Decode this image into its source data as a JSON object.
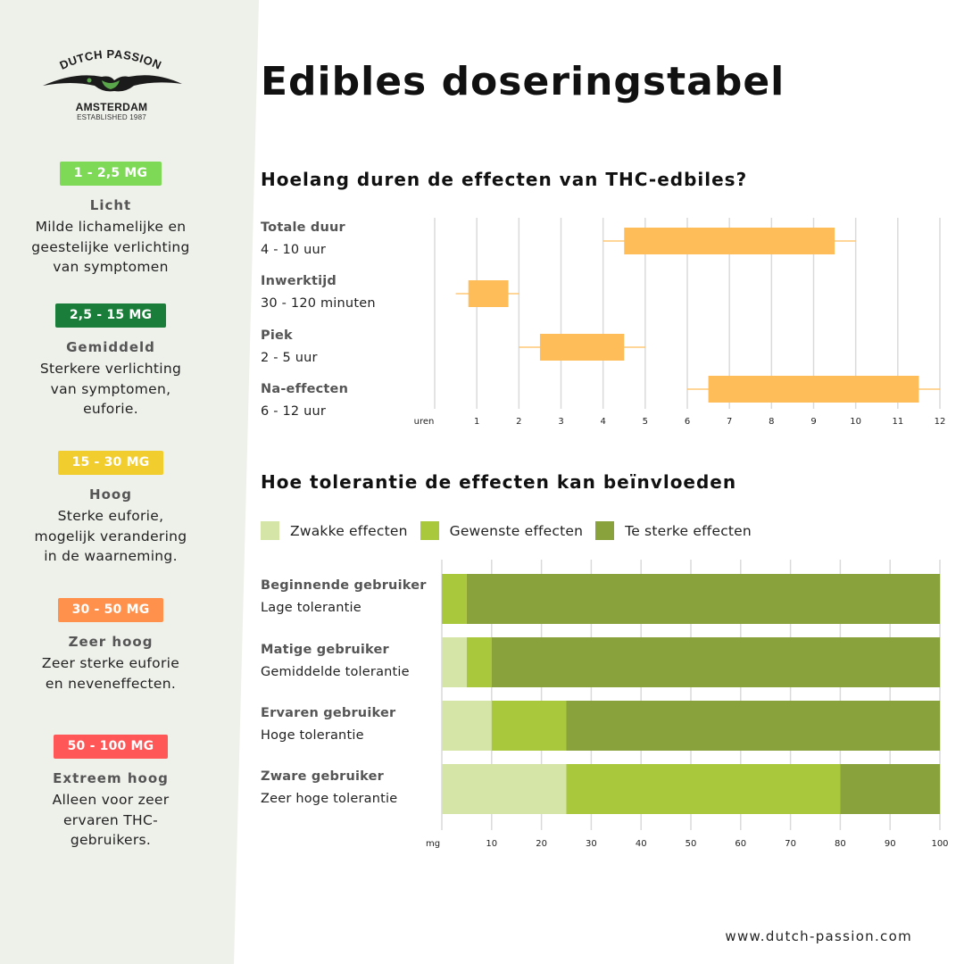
{
  "logo": {
    "brand": "DUTCH PASSION",
    "city": "AMSTERDAM",
    "established": "ESTABLISHED 1987"
  },
  "title": "Edibles doseringstabel",
  "doses": [
    {
      "badge": "1 - 2,5 MG",
      "color": "#7ed957",
      "level": "Licht",
      "lines": [
        "Milde lichamelijke en",
        "geestelijke verlichting",
        "van symptomen"
      ]
    },
    {
      "badge": "2,5 - 15 MG",
      "color": "#1a7d3a",
      "level": "Gemiddeld",
      "lines": [
        "Sterkere verlichting",
        "van symptomen,",
        "euforie."
      ]
    },
    {
      "badge": "15 - 30 MG",
      "color": "#f2cd2e",
      "level": "Hoog",
      "lines": [
        "Sterke euforie,",
        "mogelijk verandering",
        "in de waarneming."
      ]
    },
    {
      "badge": "30 - 50 MG",
      "color": "#ff914d",
      "level": "Zeer hoog",
      "lines": [
        "Zeer sterke euforie",
        "en neveneffecten."
      ]
    },
    {
      "badge": "50 - 100 MG",
      "color": "#ff5757",
      "level": "Extreem hoog",
      "lines": [
        "Alleen voor zeer",
        "ervaren THC-",
        "gebruikers."
      ]
    }
  ],
  "chart_data": [
    {
      "type": "bar",
      "title": "Hoelang duren de effecten van THC-edbiles?",
      "xlabel": "uren",
      "xlim": [
        0,
        12
      ],
      "x_ticks": [
        1,
        2,
        3,
        4,
        5,
        6,
        7,
        8,
        9,
        10,
        11,
        12
      ],
      "grid": true,
      "bar_color": "#ffbd59",
      "categories": [
        {
          "name": "Totale duur",
          "label": "4 - 10 uur",
          "low": 4,
          "q1": 4.5,
          "q3": 9.5,
          "high": 10
        },
        {
          "name": "Inwerktijd",
          "label": "30 - 120 minuten",
          "low": 0.5,
          "q1": 0.8,
          "q3": 1.75,
          "high": 2
        },
        {
          "name": "Piek",
          "label": "2 - 5 uur",
          "low": 2,
          "q1": 2.5,
          "q3": 4.5,
          "high": 5
        },
        {
          "name": "Na-effecten",
          "label": "6 - 12 uur",
          "low": 6,
          "q1": 6.5,
          "q3": 11.5,
          "high": 12
        }
      ]
    },
    {
      "type": "bar",
      "title": "Hoe tolerantie de effecten kan beïnvloeden",
      "xlabel": "mg",
      "xlim": [
        0,
        100
      ],
      "x_ticks": [
        10,
        20,
        30,
        40,
        50,
        60,
        70,
        80,
        90,
        100
      ],
      "grid": true,
      "stacked": true,
      "legend": [
        {
          "label": "Zwakke effecten",
          "color": "#d5e5a8"
        },
        {
          "label": "Gewenste effecten",
          "color": "#aac83b"
        },
        {
          "label": "Te sterke effecten",
          "color": "#8aa23b"
        }
      ],
      "categories": [
        {
          "name": "Beginnende gebruiker",
          "sub": "Lage tolerantie",
          "values": [
            0,
            5,
            95
          ]
        },
        {
          "name": "Matige gebruiker",
          "sub": "Gemiddelde tolerantie",
          "values": [
            5,
            5,
            90
          ]
        },
        {
          "name": "Ervaren gebruiker",
          "sub": "Hoge tolerantie",
          "values": [
            10,
            15,
            75
          ]
        },
        {
          "name": "Zware gebruiker",
          "sub": "Zeer hoge tolerantie",
          "values": [
            25,
            55,
            20
          ]
        }
      ]
    }
  ],
  "footer": {
    "url": "www.dutch-passion.com"
  }
}
